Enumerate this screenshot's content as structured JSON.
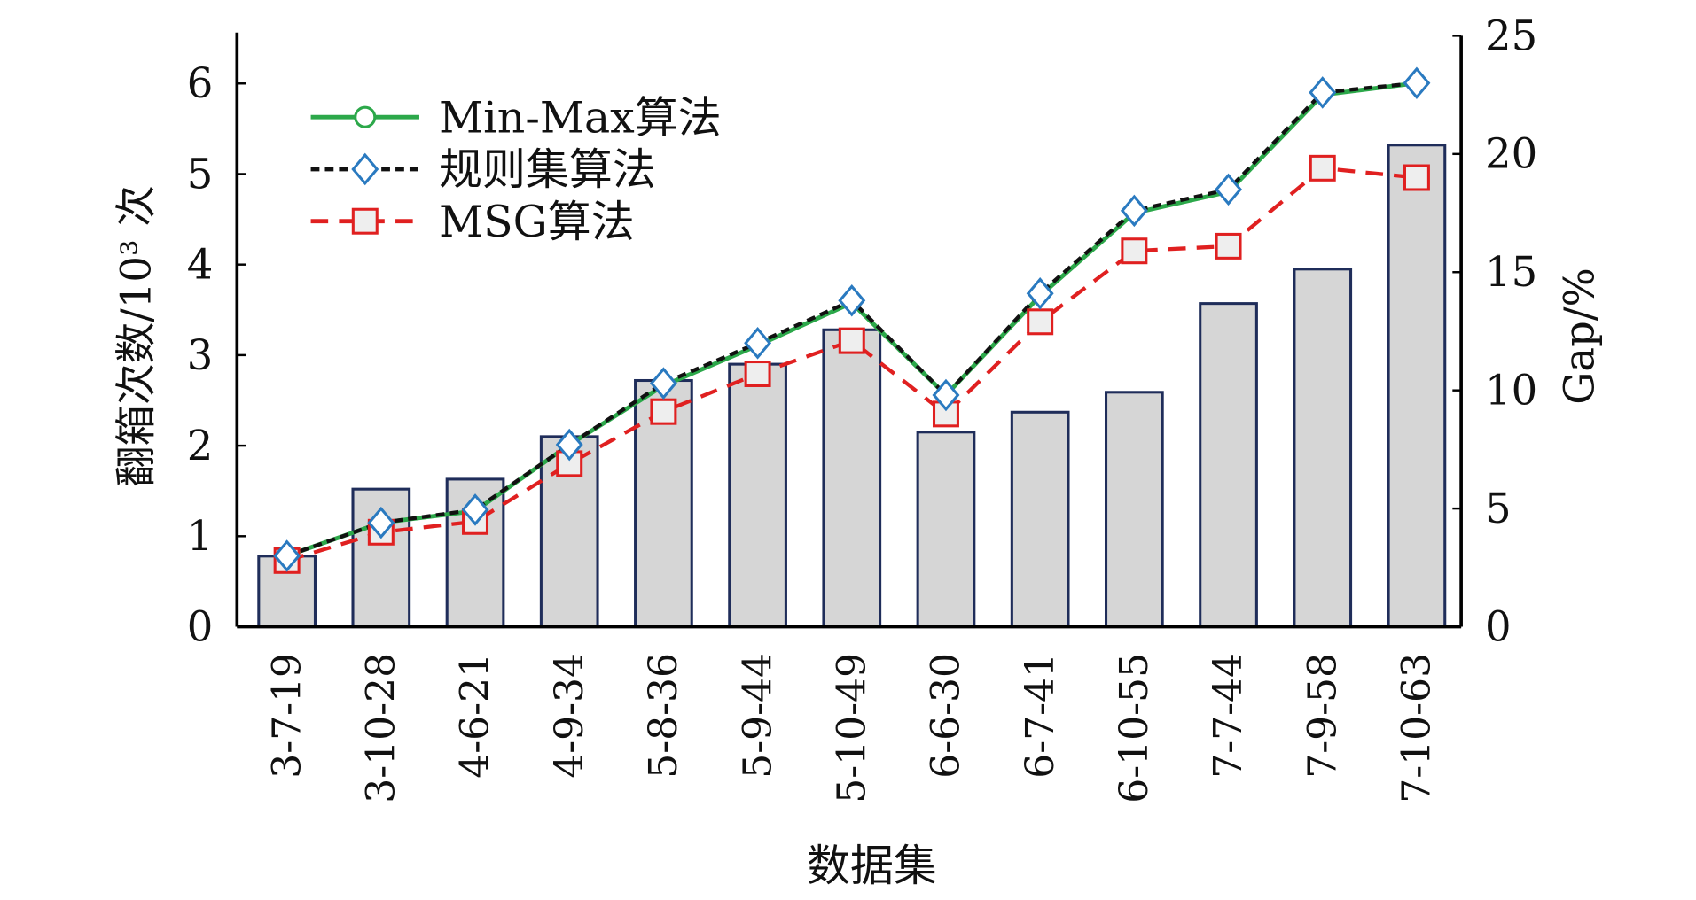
{
  "chart_data": {
    "type": "bar+line",
    "title": "",
    "xlabel": "数据集",
    "ylabel": "翻箱次数/10³ 次",
    "y2label": "Gap/%",
    "ylim": [
      0,
      6.5
    ],
    "y2lim": [
      0,
      25
    ],
    "yticks": [
      "0",
      "1",
      "2",
      "3",
      "4",
      "5",
      "6"
    ],
    "y2ticks": [
      "0",
      "5",
      "10",
      "15",
      "20",
      "25"
    ],
    "categories": [
      "3-7-19",
      "3-10-28",
      "4-6-21",
      "4-9-34",
      "5-8-36",
      "5-9-44",
      "5-10-49",
      "6-6-30",
      "6-7-41",
      "6-10-55",
      "7-7-44",
      "7-9-58",
      "7-10-63"
    ],
    "bars": {
      "name": "翻箱次数",
      "axis": "left",
      "color": "#d6d6d6",
      "edge": "#1f2d5a",
      "values": [
        0.78,
        1.52,
        1.63,
        2.1,
        2.72,
        2.9,
        3.28,
        2.15,
        2.37,
        2.59,
        3.57,
        3.95,
        5.32
      ]
    },
    "series": [
      {
        "name": "Min-Max算法",
        "axis": "right",
        "color": "#2ca84a",
        "marker": "circle",
        "values": [
          3.0,
          4.4,
          4.9,
          7.7,
          10.2,
          11.9,
          13.7,
          9.8,
          14.0,
          17.5,
          18.4,
          22.5,
          23.0
        ]
      },
      {
        "name": "规则集算法",
        "axis": "right",
        "color": "#111111",
        "marker": "diamond",
        "marker_color": "#2a7ac0",
        "values": [
          3.0,
          4.4,
          4.95,
          7.7,
          10.3,
          12.0,
          13.8,
          9.8,
          14.1,
          17.6,
          18.5,
          22.6,
          23.0
        ]
      },
      {
        "name": "MSG算法",
        "axis": "right",
        "color": "#e02020",
        "marker": "square",
        "values": [
          2.8,
          4.0,
          4.45,
          6.9,
          9.1,
          10.7,
          12.1,
          9.0,
          12.9,
          15.9,
          16.1,
          19.4,
          19.0
        ]
      }
    ],
    "legend": "top-left",
    "grid": false
  }
}
